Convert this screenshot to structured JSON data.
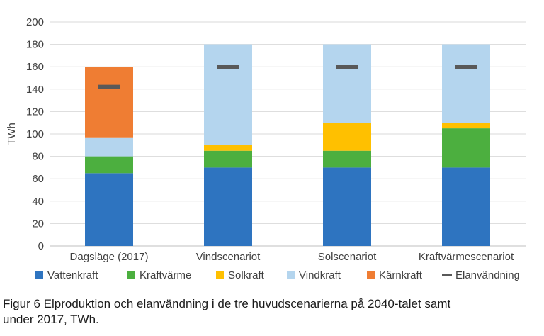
{
  "chart_data": {
    "type": "bar",
    "stacked": true,
    "categories": [
      "Dagsläge (2017)",
      "Vindscenariot",
      "Solscenariot",
      "Kraftvärmescenariot"
    ],
    "ylabel": "TWh",
    "xlabel": "",
    "ylim": [
      0,
      200
    ],
    "yticks": [
      0,
      20,
      40,
      60,
      80,
      100,
      120,
      140,
      160,
      180,
      200
    ],
    "grid": true,
    "legend_position": "bottom",
    "series": [
      {
        "name": "Vattenkraft",
        "color": "#2e74c0",
        "values": [
          65,
          70,
          70,
          70
        ]
      },
      {
        "name": "Kraftvärme",
        "color": "#4caf3f",
        "values": [
          15,
          15,
          15,
          35
        ]
      },
      {
        "name": "Solkraft",
        "color": "#ffc000",
        "values": [
          0,
          5,
          25,
          5
        ]
      },
      {
        "name": "Vindkraft",
        "color": "#b4d5ee",
        "values": [
          17,
          90,
          70,
          70
        ]
      },
      {
        "name": "Kärnkraft",
        "color": "#ef7d33",
        "values": [
          63,
          0,
          0,
          0
        ]
      }
    ],
    "markers": {
      "name": "Elanvändning",
      "color": "#595959",
      "values": [
        142,
        160,
        160,
        160
      ]
    }
  },
  "caption": {
    "line1": "Figur 6 Elproduktion och elanvändning i de tre huvudscenarierna på 2040-talet samt",
    "line2": "under 2017, TWh."
  }
}
